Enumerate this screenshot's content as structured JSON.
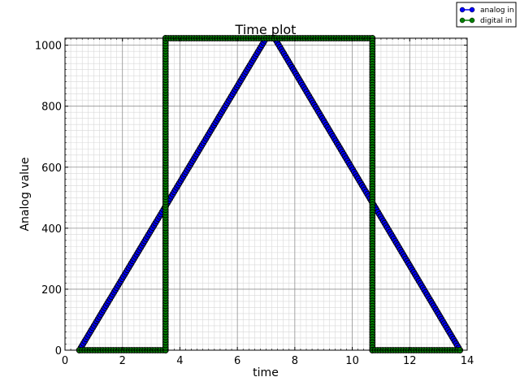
{
  "chart_data": {
    "type": "line",
    "title": "Time plot",
    "xlabel": "time",
    "ylabel": "Analog value",
    "xlim": [
      0,
      14
    ],
    "ylim": [
      0,
      1023
    ],
    "xticks": [
      "0",
      "2",
      "4",
      "6",
      "8",
      "10",
      "12",
      "14"
    ],
    "yticks": [
      "0",
      "200",
      "400",
      "600",
      "800",
      "1000"
    ],
    "grid": "major and minor",
    "legend_position": "top-right",
    "series": [
      {
        "name": "analog in",
        "color": "#0000ff",
        "marker": "circle",
        "x": [
          0.5,
          7.0,
          7.3,
          13.75
        ],
        "y": [
          0,
          1023,
          1023,
          0
        ]
      },
      {
        "name": "digital in",
        "color": "#008000",
        "marker": "circle",
        "x": [
          0.5,
          3.5,
          3.5,
          10.7,
          10.7,
          13.75
        ],
        "y": [
          0,
          0,
          1023,
          1023,
          0,
          0
        ]
      }
    ]
  }
}
